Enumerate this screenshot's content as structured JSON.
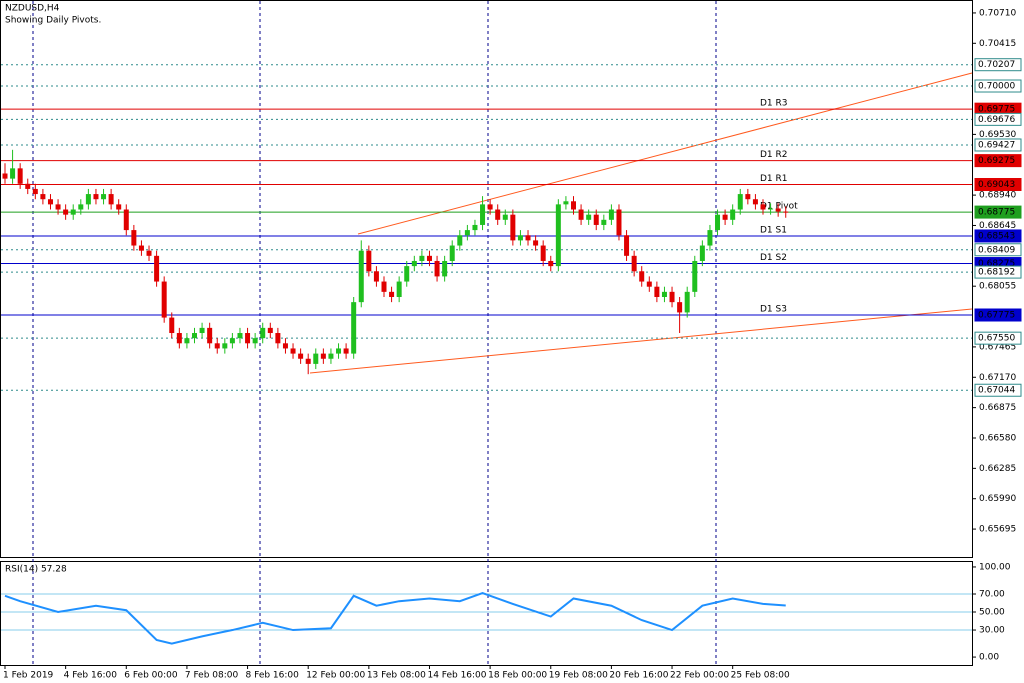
{
  "chart_data": [
    {
      "type": "candlestick",
      "title": "NZDUSD,H4",
      "subtitle": "Showing Daily Pivots.",
      "categories": [
        "1 Feb 2019",
        null,
        null,
        null,
        null,
        null,
        null,
        null,
        "4 Feb 16:00",
        null,
        null,
        null,
        null,
        null,
        null,
        null,
        "6 Feb 00:00",
        null,
        null,
        null,
        null,
        null,
        null,
        null,
        "7 Feb 08:00",
        null,
        null,
        null,
        null,
        null,
        null,
        null,
        "8 Feb 16:00",
        null,
        null,
        null,
        null,
        null,
        null,
        null,
        "12 Feb 00:00",
        null,
        null,
        null,
        null,
        null,
        null,
        null,
        "13 Feb 08:00",
        null,
        null,
        null,
        null,
        null,
        null,
        null,
        "14 Feb 16:00",
        null,
        null,
        null,
        null,
        null,
        null,
        null,
        "18 Feb 00:00",
        null,
        null,
        null,
        null,
        null,
        null,
        null,
        "19 Feb 08:00",
        null,
        null,
        null,
        null,
        null,
        null,
        null,
        "20 Feb 16:00",
        null,
        null,
        null,
        null,
        null,
        null,
        null,
        "22 Feb 00:00",
        null,
        null,
        null,
        null,
        null,
        null,
        null,
        "25 Feb 08:00",
        null,
        null,
        null,
        null,
        null,
        null,
        null
      ],
      "open": [
        0.6915,
        0.691,
        0.692,
        0.6905,
        0.69,
        0.6895,
        0.689,
        0.6885,
        0.688,
        0.6875,
        0.688,
        0.6885,
        0.6895,
        0.689,
        0.6895,
        0.6885,
        0.688,
        0.686,
        0.6845,
        0.684,
        0.6835,
        0.681,
        0.6775,
        0.676,
        0.675,
        0.6755,
        0.676,
        0.6765,
        0.675,
        0.6745,
        0.675,
        0.6755,
        0.676,
        0.675,
        0.6755,
        0.6765,
        0.676,
        0.675,
        0.6745,
        0.674,
        0.6735,
        0.673,
        0.674,
        0.6735,
        0.674,
        0.6745,
        0.674,
        0.679,
        0.684,
        0.682,
        0.681,
        0.68,
        0.6795,
        0.681,
        0.6825,
        0.683,
        0.6835,
        0.683,
        0.6815,
        0.683,
        0.6845,
        0.6855,
        0.686,
        0.6865,
        0.6885,
        0.688,
        0.687,
        0.6875,
        0.685,
        0.6855,
        0.685,
        0.6845,
        0.683,
        0.6825,
        0.6885,
        0.6888,
        0.688,
        0.687,
        0.6875,
        0.6865,
        0.687,
        0.688,
        0.6855,
        0.6835,
        0.682,
        0.681,
        0.6805,
        0.6795,
        0.68,
        0.679,
        0.678,
        0.68,
        0.683,
        0.6845,
        0.686,
        0.6875,
        0.687,
        0.688,
        0.6895,
        0.689,
        0.6885,
        0.688,
        0.6881,
        0.6878
      ],
      "high": [
        0.6925,
        0.6938,
        0.6925,
        0.691,
        0.6905,
        0.69,
        0.6895,
        0.689,
        0.6885,
        0.6885,
        0.689,
        0.69,
        0.69,
        0.69,
        0.69,
        0.689,
        0.6885,
        0.6865,
        0.685,
        0.6845,
        0.684,
        0.6815,
        0.678,
        0.6765,
        0.676,
        0.6765,
        0.677,
        0.677,
        0.6755,
        0.6755,
        0.676,
        0.6765,
        0.6765,
        0.676,
        0.677,
        0.677,
        0.6765,
        0.6755,
        0.675,
        0.6745,
        0.674,
        0.6745,
        0.6745,
        0.6745,
        0.675,
        0.675,
        0.6795,
        0.685,
        0.6845,
        0.6825,
        0.6815,
        0.6805,
        0.6815,
        0.683,
        0.6835,
        0.684,
        0.684,
        0.6835,
        0.6835,
        0.685,
        0.686,
        0.6865,
        0.687,
        0.6893,
        0.689,
        0.6885,
        0.688,
        0.688,
        0.686,
        0.686,
        0.6855,
        0.685,
        0.6835,
        0.689,
        0.6893,
        0.6893,
        0.6885,
        0.688,
        0.688,
        0.6875,
        0.6885,
        0.6885,
        0.686,
        0.684,
        0.6825,
        0.6815,
        0.681,
        0.6805,
        0.6805,
        0.6795,
        0.6805,
        0.6835,
        0.685,
        0.6865,
        0.688,
        0.688,
        0.6885,
        0.69,
        0.69,
        0.6895,
        0.689,
        0.6886,
        0.6886,
        0.6883
      ],
      "low": [
        0.6905,
        0.6905,
        0.69,
        0.6895,
        0.689,
        0.6885,
        0.688,
        0.6875,
        0.687,
        0.687,
        0.6875,
        0.688,
        0.6885,
        0.6885,
        0.688,
        0.6875,
        0.6855,
        0.684,
        0.6835,
        0.683,
        0.6805,
        0.677,
        0.6755,
        0.6745,
        0.6745,
        0.675,
        0.6755,
        0.6745,
        0.674,
        0.674,
        0.6745,
        0.675,
        0.6745,
        0.6745,
        0.675,
        0.6755,
        0.6745,
        0.674,
        0.6735,
        0.673,
        0.672,
        0.6725,
        0.673,
        0.673,
        0.6735,
        0.6735,
        0.6735,
        0.6785,
        0.6815,
        0.6805,
        0.6795,
        0.679,
        0.679,
        0.6805,
        0.682,
        0.6825,
        0.6825,
        0.681,
        0.681,
        0.6825,
        0.684,
        0.685,
        0.6855,
        0.686,
        0.6875,
        0.6865,
        0.6865,
        0.6845,
        0.6845,
        0.6845,
        0.684,
        0.6825,
        0.682,
        0.682,
        0.688,
        0.6875,
        0.6865,
        0.6865,
        0.686,
        0.686,
        0.6865,
        0.685,
        0.683,
        0.6815,
        0.6805,
        0.68,
        0.679,
        0.679,
        0.6785,
        0.676,
        0.6775,
        0.6795,
        0.6825,
        0.684,
        0.6855,
        0.6865,
        0.6865,
        0.6875,
        0.6885,
        0.688,
        0.6875,
        0.6875,
        0.6873,
        0.6872
      ],
      "close": [
        0.691,
        0.692,
        0.6905,
        0.69,
        0.6895,
        0.689,
        0.6885,
        0.688,
        0.6875,
        0.688,
        0.6885,
        0.6895,
        0.689,
        0.6895,
        0.6885,
        0.688,
        0.686,
        0.6845,
        0.684,
        0.6835,
        0.681,
        0.6775,
        0.676,
        0.675,
        0.6755,
        0.676,
        0.6765,
        0.675,
        0.6745,
        0.675,
        0.6755,
        0.676,
        0.675,
        0.6755,
        0.6765,
        0.676,
        0.675,
        0.6745,
        0.674,
        0.6735,
        0.673,
        0.674,
        0.6735,
        0.674,
        0.6745,
        0.674,
        0.679,
        0.684,
        0.682,
        0.681,
        0.68,
        0.6795,
        0.681,
        0.6825,
        0.683,
        0.6835,
        0.683,
        0.6815,
        0.683,
        0.6845,
        0.6855,
        0.686,
        0.6865,
        0.6885,
        0.688,
        0.687,
        0.6875,
        0.685,
        0.6855,
        0.685,
        0.6845,
        0.683,
        0.6825,
        0.6885,
        0.6888,
        0.688,
        0.687,
        0.6875,
        0.6865,
        0.687,
        0.688,
        0.6855,
        0.6835,
        0.682,
        0.681,
        0.6805,
        0.6795,
        0.68,
        0.679,
        0.678,
        0.68,
        0.683,
        0.6845,
        0.686,
        0.6875,
        0.687,
        0.688,
        0.6895,
        0.689,
        0.6885,
        0.688,
        0.6881,
        0.6878,
        0.6877
      ],
      "up_color": "#1fbf1f",
      "down_color": "#e00000",
      "ylim": [
        0.65414,
        0.70826
      ],
      "yticks": [
        {
          "value": 0.7071,
          "label": "0.70710"
        },
        {
          "value": 0.70415,
          "label": "0.70415"
        },
        {
          "value": 0.6953,
          "label": "0.69530"
        },
        {
          "value": 0.6894,
          "label": "0.68940"
        },
        {
          "value": 0.68645,
          "label": "0.68645"
        },
        {
          "value": 0.68055,
          "label": "0.68055"
        },
        {
          "value": 0.67465,
          "label": "0.67465"
        },
        {
          "value": 0.6717,
          "label": "0.67170"
        },
        {
          "value": 0.66875,
          "label": "0.66875"
        },
        {
          "value": 0.6658,
          "label": "0.66580"
        },
        {
          "value": 0.66285,
          "label": "0.66285"
        },
        {
          "value": 0.6599,
          "label": "0.65990"
        },
        {
          "value": 0.65695,
          "label": "0.65695"
        }
      ],
      "levels": [
        {
          "value": 0.70207,
          "label": "0.70207",
          "color": "#2e8b8b",
          "style": "dotted"
        },
        {
          "value": 0.7,
          "label": "0.70000",
          "color": "#2e8b8b",
          "style": "dotted"
        },
        {
          "value": 0.69775,
          "label": "0.69775",
          "name": "D1 R3",
          "color": "#e00000",
          "style": "solid"
        },
        {
          "value": 0.69676,
          "label": "0.69676",
          "color": "#2e8b8b",
          "style": "dotted"
        },
        {
          "value": 0.69427,
          "label": "0.69427",
          "color": "#2e8b8b",
          "style": "dotted"
        },
        {
          "value": 0.69275,
          "label": "0.69275",
          "name": "D1 R2",
          "color": "#e00000",
          "style": "solid"
        },
        {
          "value": 0.69043,
          "label": "0.69043",
          "name": "D1 R1",
          "color": "#e00000",
          "style": "solid"
        },
        {
          "value": 0.68775,
          "label": "0.68775",
          "name": "D1 Pivot",
          "color": "#1f9f1f",
          "style": "solid"
        },
        {
          "value": 0.68543,
          "label": "0.68543",
          "name": "D1 S1",
          "color": "#0000cc",
          "style": "solid"
        },
        {
          "value": 0.68409,
          "label": "0.68409",
          "color": "#2e8b8b",
          "style": "dotted"
        },
        {
          "value": 0.68275,
          "label": "0.68275",
          "name": "D1 S2",
          "color": "#0000cc",
          "style": "solid"
        },
        {
          "value": 0.68192,
          "label": "0.68192",
          "color": "#2e8b8b",
          "style": "dotted"
        },
        {
          "value": 0.67775,
          "label": "0.67775",
          "name": "D1 S3",
          "color": "#0000cc",
          "style": "solid"
        },
        {
          "value": 0.6755,
          "label": "0.67550",
          "color": "#2e8b8b",
          "style": "dotted"
        },
        {
          "value": 0.67044,
          "label": "0.67044",
          "color": "#2e8b8b",
          "style": "dotted"
        }
      ]
    },
    {
      "type": "line",
      "label": "RSI(14) 57.28",
      "color": "#1e90ff",
      "x": [
        0,
        2,
        7,
        12,
        16,
        20,
        22,
        26,
        30,
        34,
        38,
        43,
        46,
        49,
        52,
        56,
        60,
        63,
        67,
        72,
        75,
        80,
        84,
        88,
        92,
        96,
        100,
        103
      ],
      "values": [
        68,
        62,
        50,
        57,
        52,
        19,
        15,
        23,
        30,
        38,
        30,
        32,
        68,
        57,
        62,
        65,
        62,
        71,
        59,
        45,
        65,
        57,
        41,
        30,
        57,
        65,
        59,
        57.28
      ],
      "ylim": [
        -8.8,
        105.5
      ],
      "yticks": [
        {
          "value": 100,
          "label": "100.00"
        },
        {
          "value": 70,
          "label": "70.00"
        },
        {
          "value": 50,
          "label": "50.00"
        },
        {
          "value": 30,
          "label": "30.00"
        },
        {
          "value": 0,
          "label": "0.00"
        }
      ],
      "levels": [
        70,
        50,
        30
      ],
      "level_color": "#87ceeb"
    }
  ]
}
